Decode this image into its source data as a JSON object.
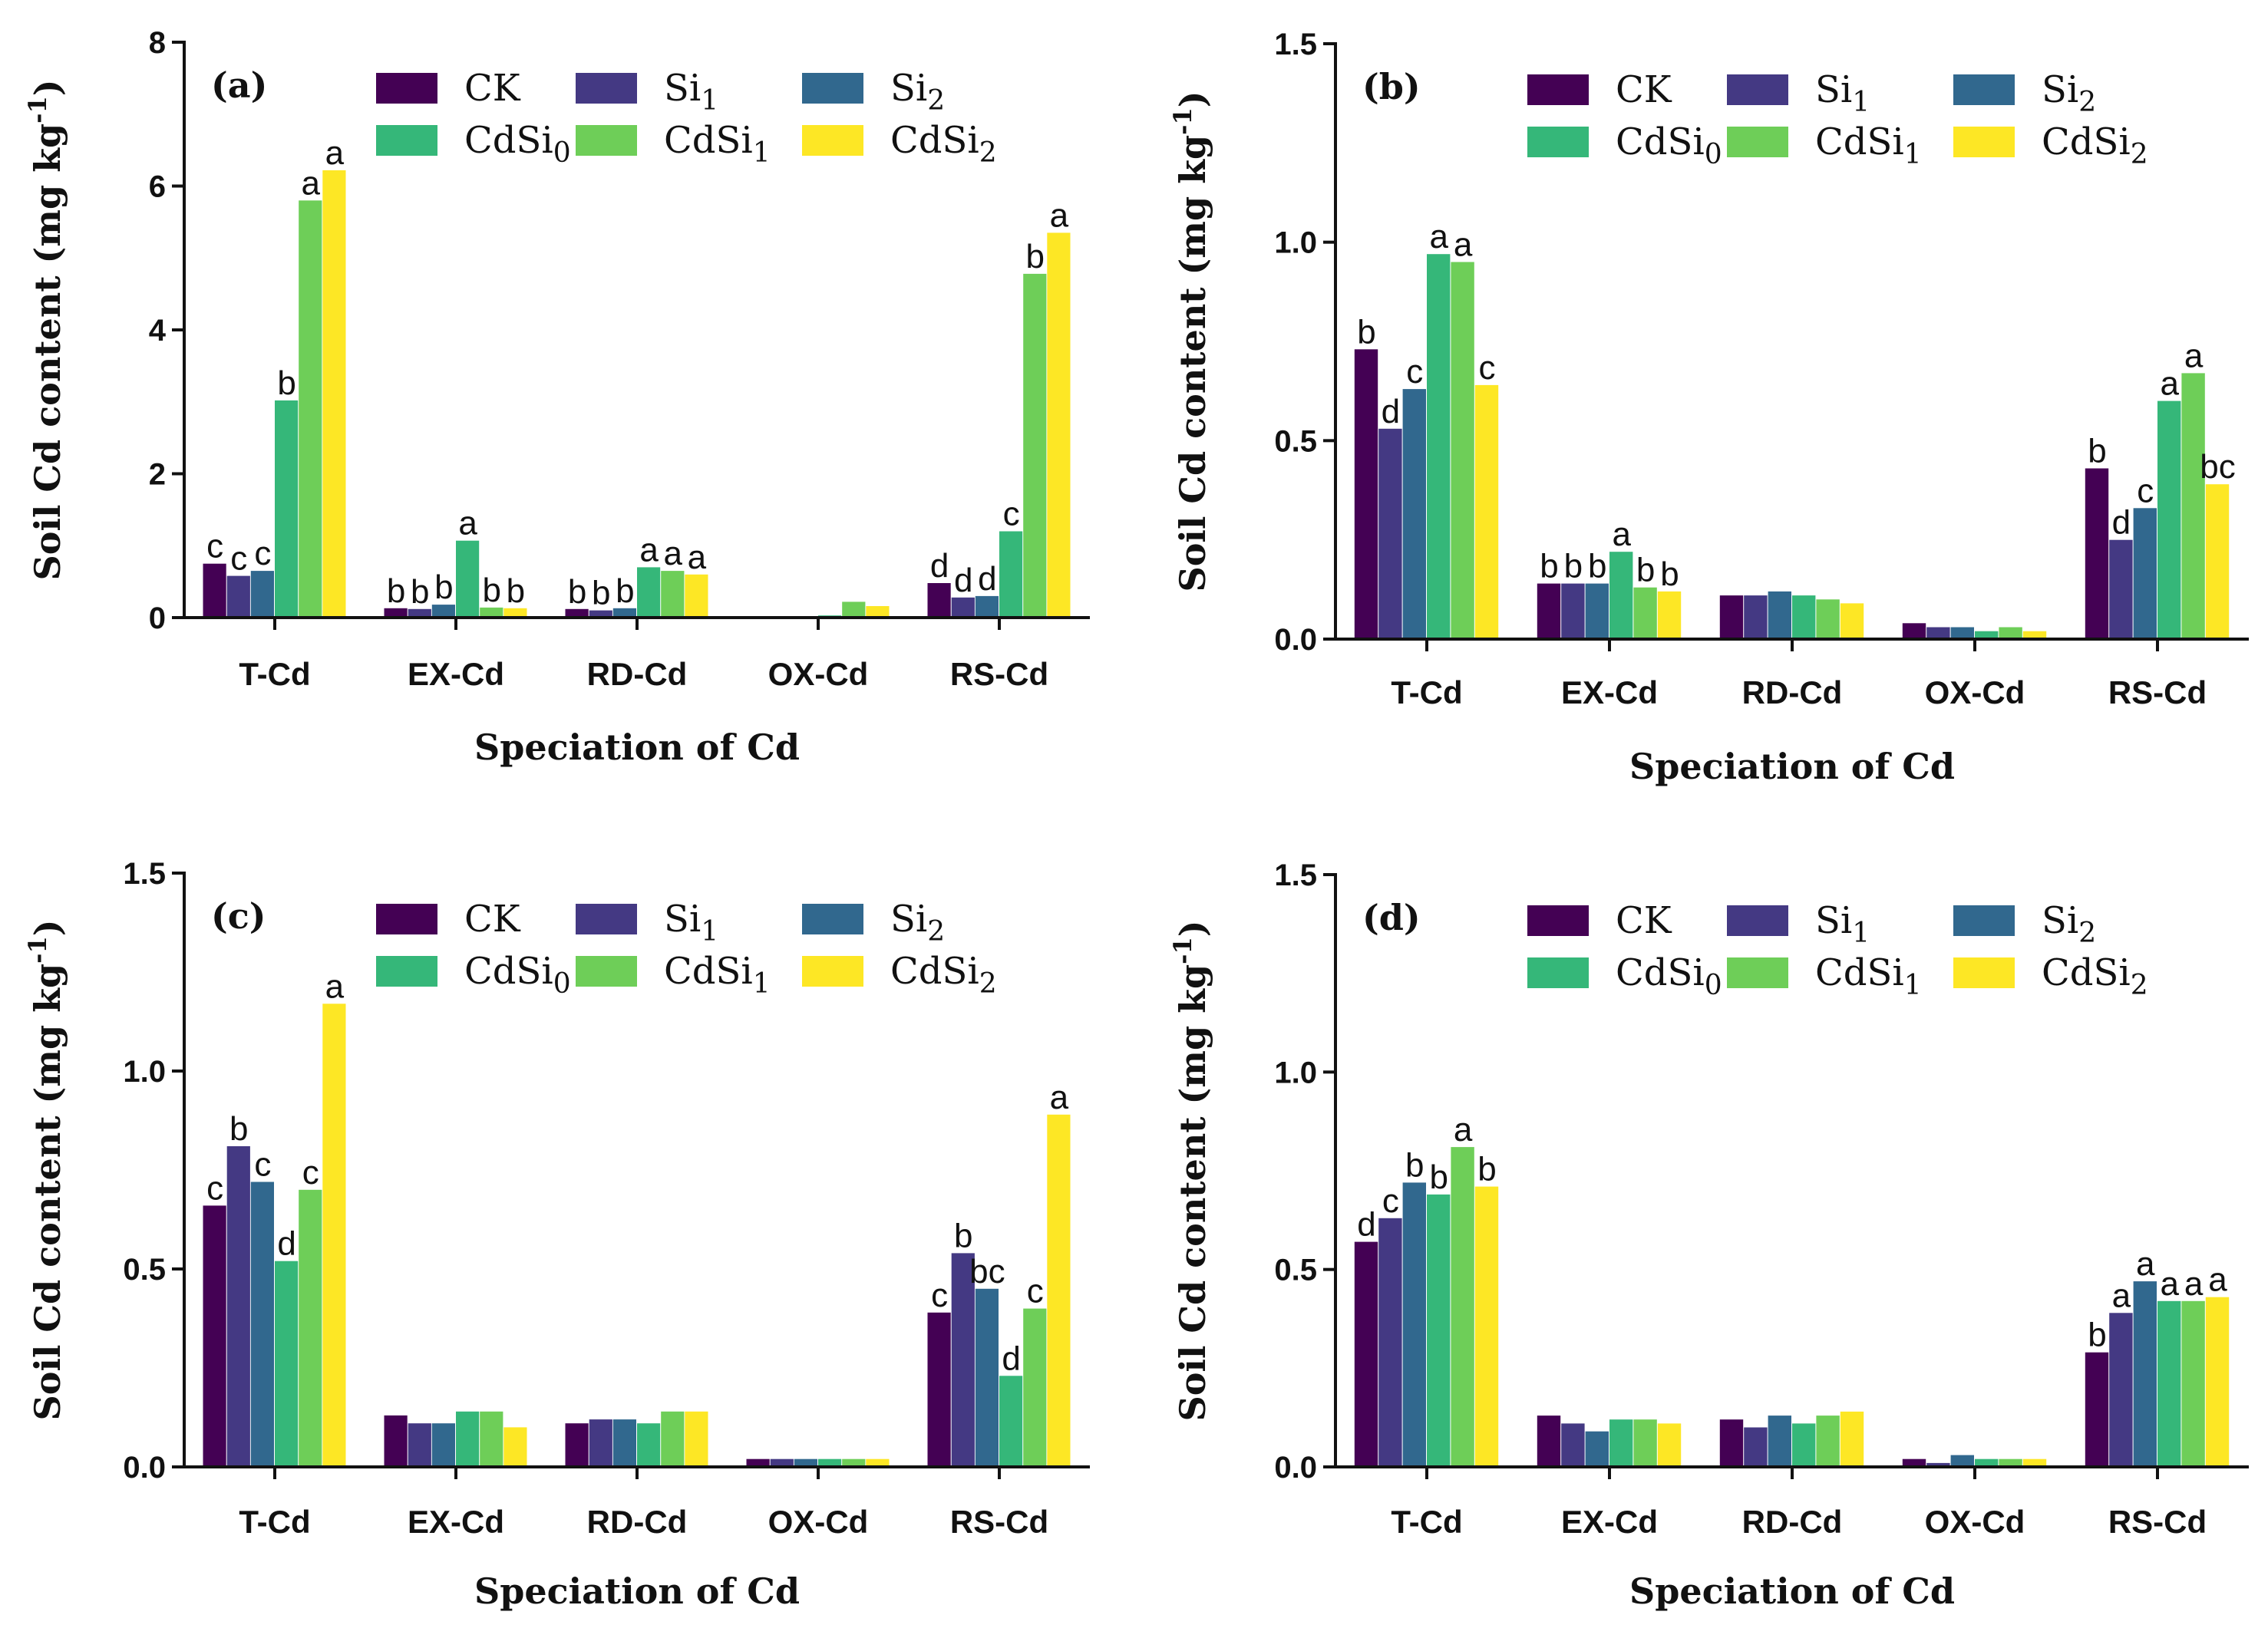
{
  "figure": {
    "palette": {
      "CK": "#440154",
      "Si1": "#443983",
      "Si2": "#31688e",
      "CdSi0": "#35b779",
      "CdSi1": "#6ece58",
      "CdSi2": "#fde725"
    }
  },
  "chart_data": [
    {
      "type": "bar",
      "panel_label": "(a)",
      "xlabel": "Speciation of Cd",
      "ylabel": "Soil Cd content (mg kg-1)",
      "ylim": [
        0,
        8
      ],
      "yticks": [
        "0",
        "2",
        "4",
        "6",
        "8"
      ],
      "ytick_values": [
        0,
        2,
        4,
        6,
        8
      ],
      "legend": [
        {
          "name": "CK",
          "base": "CK",
          "sub": ""
        },
        {
          "name": "Si1",
          "base": "Si",
          "sub": "1"
        },
        {
          "name": "Si2",
          "base": "Si",
          "sub": "2"
        },
        {
          "name": "CdSi0",
          "base": "CdSi",
          "sub": "0"
        },
        {
          "name": "CdSi1",
          "base": "CdSi",
          "sub": "1"
        },
        {
          "name": "CdSi2",
          "base": "CdSi",
          "sub": "2"
        }
      ],
      "categories": [
        "T-Cd",
        "EX-Cd",
        "RD-Cd",
        "OX-Cd",
        "RS-Cd"
      ],
      "series": [
        {
          "name": "CK",
          "values": [
            0.75,
            0.13,
            0.12,
            0.0,
            0.48
          ],
          "letters": [
            "c",
            "b",
            "b",
            "",
            "d"
          ]
        },
        {
          "name": "Si1",
          "values": [
            0.58,
            0.12,
            0.1,
            0.0,
            0.28
          ],
          "letters": [
            "c",
            "b",
            "b",
            "",
            "d"
          ]
        },
        {
          "name": "Si2",
          "values": [
            0.65,
            0.18,
            0.13,
            0.0,
            0.3
          ],
          "letters": [
            "c",
            "b",
            "b",
            "",
            "d"
          ]
        },
        {
          "name": "CdSi0",
          "values": [
            3.02,
            1.07,
            0.7,
            0.03,
            1.2
          ],
          "letters": [
            "b",
            "a",
            "a",
            "",
            "c"
          ]
        },
        {
          "name": "CdSi1",
          "values": [
            5.8,
            0.14,
            0.65,
            0.22,
            4.78
          ],
          "letters": [
            "a",
            "b",
            "a",
            "",
            "b"
          ]
        },
        {
          "name": "CdSi2",
          "values": [
            6.22,
            0.13,
            0.6,
            0.16,
            5.35
          ],
          "letters": [
            "a",
            "b",
            "a",
            "",
            "a"
          ]
        }
      ]
    },
    {
      "type": "bar",
      "panel_label": "(b)",
      "xlabel": "Speciation of Cd",
      "ylabel": "Soil Cd content (mg kg-1)",
      "ylim": [
        0,
        1.5
      ],
      "yticks": [
        "0.0",
        "0.5",
        "1.0",
        "1.5"
      ],
      "ytick_values": [
        0,
        0.5,
        1.0,
        1.5
      ],
      "legend": [
        {
          "name": "CK",
          "base": "CK",
          "sub": ""
        },
        {
          "name": "Si1",
          "base": "Si",
          "sub": "1"
        },
        {
          "name": "Si2",
          "base": "Si",
          "sub": "2"
        },
        {
          "name": "CdSi0",
          "base": "CdSi",
          "sub": "0"
        },
        {
          "name": "CdSi1",
          "base": "CdSi",
          "sub": "1"
        },
        {
          "name": "CdSi2",
          "base": "CdSi",
          "sub": "2"
        }
      ],
      "categories": [
        "T-Cd",
        "EX-Cd",
        "RD-Cd",
        "OX-Cd",
        "RS-Cd"
      ],
      "series": [
        {
          "name": "CK",
          "values": [
            0.73,
            0.14,
            0.11,
            0.04,
            0.43
          ],
          "letters": [
            "b",
            "b",
            "",
            "",
            "b"
          ]
        },
        {
          "name": "Si1",
          "values": [
            0.53,
            0.14,
            0.11,
            0.03,
            0.25
          ],
          "letters": [
            "d",
            "b",
            "",
            "",
            "d"
          ]
        },
        {
          "name": "Si2",
          "values": [
            0.63,
            0.14,
            0.12,
            0.03,
            0.33
          ],
          "letters": [
            "c",
            "b",
            "",
            "",
            "c"
          ]
        },
        {
          "name": "CdSi0",
          "values": [
            0.97,
            0.22,
            0.11,
            0.02,
            0.6
          ],
          "letters": [
            "a",
            "a",
            "",
            "",
            "a"
          ]
        },
        {
          "name": "CdSi1",
          "values": [
            0.95,
            0.13,
            0.1,
            0.03,
            0.67
          ],
          "letters": [
            "a",
            "b",
            "",
            "",
            "a"
          ]
        },
        {
          "name": "CdSi2",
          "values": [
            0.64,
            0.12,
            0.09,
            0.02,
            0.39
          ],
          "letters": [
            "c",
            "b",
            "",
            "",
            "bc"
          ]
        }
      ]
    },
    {
      "type": "bar",
      "panel_label": "(c)",
      "xlabel": "Speciation of Cd",
      "ylabel": "Soil Cd content (mg kg-1)",
      "ylim": [
        0,
        1.5
      ],
      "yticks": [
        "0.0",
        "0.5",
        "1.0",
        "1.5"
      ],
      "ytick_values": [
        0,
        0.5,
        1.0,
        1.5
      ],
      "legend": [
        {
          "name": "CK",
          "base": "CK",
          "sub": ""
        },
        {
          "name": "Si1",
          "base": "Si",
          "sub": "1"
        },
        {
          "name": "Si2",
          "base": "Si",
          "sub": "2"
        },
        {
          "name": "CdSi0",
          "base": "CdSi",
          "sub": "0"
        },
        {
          "name": "CdSi1",
          "base": "CdSi",
          "sub": "1"
        },
        {
          "name": "CdSi2",
          "base": "CdSi",
          "sub": "2"
        }
      ],
      "categories": [
        "T-Cd",
        "EX-Cd",
        "RD-Cd",
        "OX-Cd",
        "RS-Cd"
      ],
      "series": [
        {
          "name": "CK",
          "values": [
            0.66,
            0.13,
            0.11,
            0.02,
            0.39
          ],
          "letters": [
            "c",
            "",
            "",
            "",
            "c"
          ]
        },
        {
          "name": "Si1",
          "values": [
            0.81,
            0.11,
            0.12,
            0.02,
            0.54
          ],
          "letters": [
            "b",
            "",
            "",
            "",
            "b"
          ]
        },
        {
          "name": "Si2",
          "values": [
            0.72,
            0.11,
            0.12,
            0.02,
            0.45
          ],
          "letters": [
            "c",
            "",
            "",
            "",
            "bc"
          ]
        },
        {
          "name": "CdSi0",
          "values": [
            0.52,
            0.14,
            0.11,
            0.02,
            0.23
          ],
          "letters": [
            "d",
            "",
            "",
            "",
            "d"
          ]
        },
        {
          "name": "CdSi1",
          "values": [
            0.7,
            0.14,
            0.14,
            0.02,
            0.4
          ],
          "letters": [
            "c",
            "",
            "",
            "",
            "c"
          ]
        },
        {
          "name": "CdSi2",
          "values": [
            1.17,
            0.1,
            0.14,
            0.02,
            0.89
          ],
          "letters": [
            "a",
            "",
            "",
            "",
            "a"
          ]
        }
      ]
    },
    {
      "type": "bar",
      "panel_label": "(d)",
      "xlabel": "Speciation of Cd",
      "ylabel": "Soil Cd content (mg kg-1)",
      "ylim": [
        0,
        1.5
      ],
      "yticks": [
        "0.0",
        "0.5",
        "1.0",
        "1.5"
      ],
      "ytick_values": [
        0,
        0.5,
        1.0,
        1.5
      ],
      "legend": [
        {
          "name": "CK",
          "base": "CK",
          "sub": ""
        },
        {
          "name": "Si1",
          "base": "Si",
          "sub": "1"
        },
        {
          "name": "Si2",
          "base": "Si",
          "sub": "2"
        },
        {
          "name": "CdSi0",
          "base": "CdSi",
          "sub": "0"
        },
        {
          "name": "CdSi1",
          "base": "CdSi",
          "sub": "1"
        },
        {
          "name": "CdSi2",
          "base": "CdSi",
          "sub": "2"
        }
      ],
      "categories": [
        "T-Cd",
        "EX-Cd",
        "RD-Cd",
        "OX-Cd",
        "RS-Cd"
      ],
      "series": [
        {
          "name": "CK",
          "values": [
            0.57,
            0.13,
            0.12,
            0.02,
            0.29
          ],
          "letters": [
            "d",
            "",
            "",
            "",
            "b"
          ]
        },
        {
          "name": "Si1",
          "values": [
            0.63,
            0.11,
            0.1,
            0.01,
            0.39
          ],
          "letters": [
            "c",
            "",
            "",
            "",
            "a"
          ]
        },
        {
          "name": "Si2",
          "values": [
            0.72,
            0.09,
            0.13,
            0.03,
            0.47
          ],
          "letters": [
            "b",
            "",
            "",
            "",
            "a"
          ]
        },
        {
          "name": "CdSi0",
          "values": [
            0.69,
            0.12,
            0.11,
            0.02,
            0.42
          ],
          "letters": [
            "b",
            "",
            "",
            "",
            "a"
          ]
        },
        {
          "name": "CdSi1",
          "values": [
            0.81,
            0.12,
            0.13,
            0.02,
            0.42
          ],
          "letters": [
            "a",
            "",
            "",
            "",
            "a"
          ]
        },
        {
          "name": "CdSi2",
          "values": [
            0.71,
            0.11,
            0.14,
            0.02,
            0.43
          ],
          "letters": [
            "b",
            "",
            "",
            "",
            "a"
          ]
        }
      ]
    }
  ]
}
